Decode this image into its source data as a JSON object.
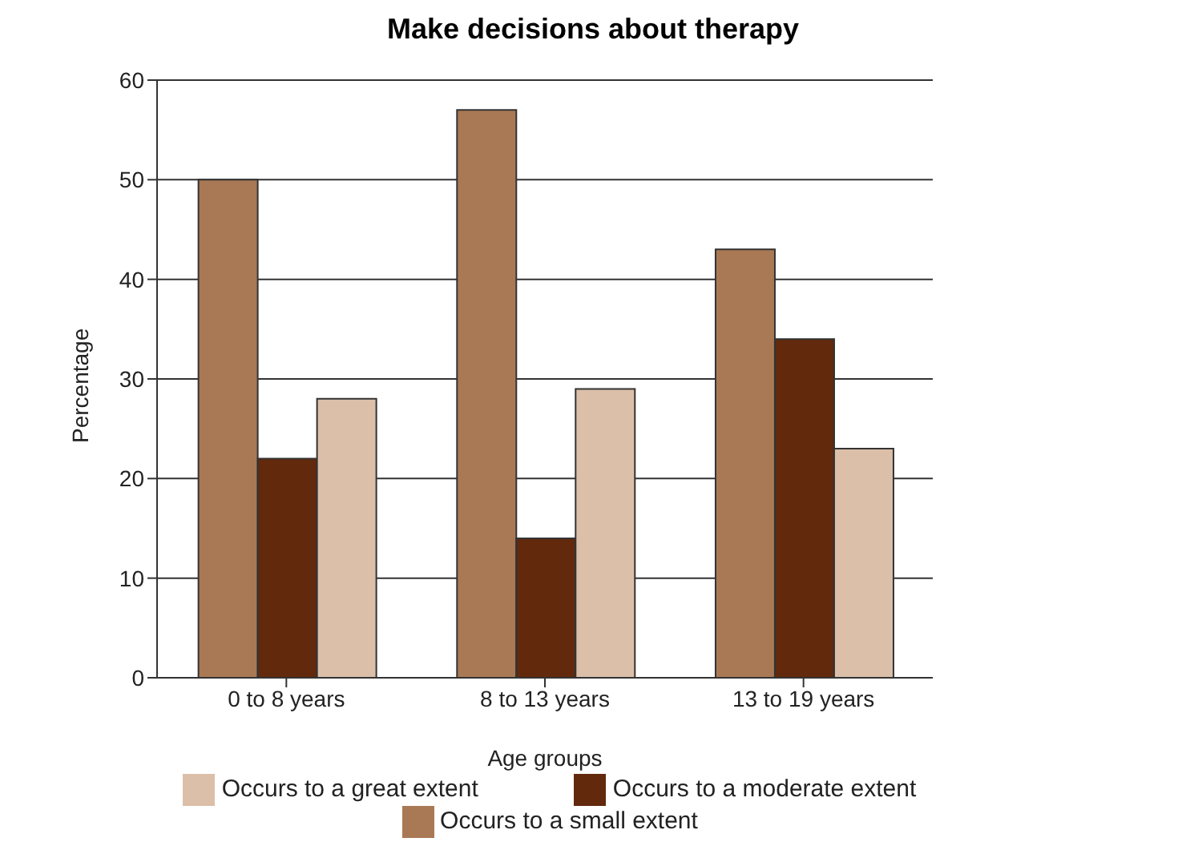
{
  "chart_data": {
    "type": "bar",
    "title": "Make decisions about therapy",
    "xlabel": "Age groups",
    "ylabel": "Percentage",
    "categories": [
      "0 to 8 years",
      "8 to 13 years",
      "13 to 19 years"
    ],
    "series": [
      {
        "name": "Occurs to a small extent",
        "color": "#a97955",
        "values": [
          50,
          57,
          43
        ]
      },
      {
        "name": "Occurs to a moderate extent",
        "color": "#62290c",
        "values": [
          22,
          14,
          34
        ]
      },
      {
        "name": "Occurs to a great extent",
        "color": "#dbbfa9",
        "values": [
          28,
          29,
          23
        ]
      }
    ],
    "ylim": [
      0,
      60
    ],
    "yticks": [
      0,
      10,
      20,
      30,
      40,
      50,
      60
    ],
    "grid": "y",
    "legend": "bottom"
  }
}
